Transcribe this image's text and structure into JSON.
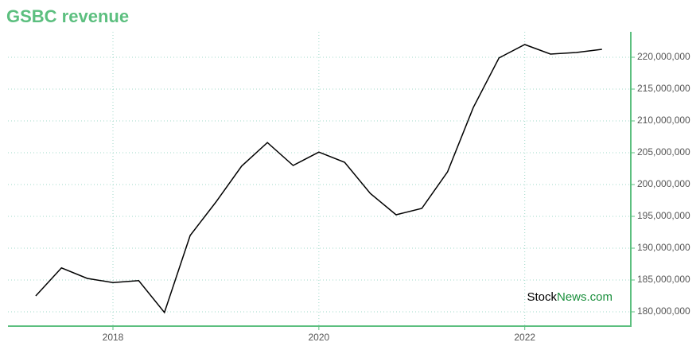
{
  "chart_data": {
    "type": "line",
    "title": "GSBC revenue",
    "watermark": [
      "Stock",
      "News.com"
    ],
    "x": [
      2017.25,
      2017.5,
      2017.75,
      2018,
      2018.25,
      2018.5,
      2018.75,
      2019,
      2019.25,
      2019.5,
      2019.75,
      2020,
      2020.25,
      2020.5,
      2020.75,
      2021,
      2021.25,
      2021.5,
      2021.75,
      2022,
      2022.25,
      2022.5,
      2022.75
    ],
    "series": [
      {
        "name": "Revenue",
        "color": "#000000",
        "values": [
          182500000,
          186900000,
          185250000,
          184600000,
          184900000,
          179900000,
          192000000,
          197250000,
          202900000,
          206600000,
          203000000,
          205100000,
          203500000,
          198600000,
          195250000,
          196250000,
          202000000,
          212100000,
          219900000,
          222000000,
          220500000,
          220750000,
          221250000
        ]
      }
    ],
    "xlim": [
      2016.98,
      2023.03
    ],
    "xticks": [
      2018,
      2020,
      2022
    ],
    "ylim": [
      177750000,
      224000000
    ],
    "yticks": [
      {
        "value": 180000000,
        "label": "180,000,000"
      },
      {
        "value": 185000000,
        "label": "185,000,000"
      },
      {
        "value": 190000000,
        "label": "190,000,000"
      },
      {
        "value": 195000000,
        "label": "195,000,000"
      },
      {
        "value": 200000000,
        "label": "200,000,000"
      },
      {
        "value": 205000000,
        "label": "205,000,000"
      },
      {
        "value": 210000000,
        "label": "210,000,000"
      },
      {
        "value": 215000000,
        "label": "215,000,000"
      },
      {
        "value": 220000000,
        "label": "220,000,000"
      }
    ],
    "grid": true,
    "axis_color": "#5cbf7f",
    "grid_color": "#9fd9c9"
  }
}
